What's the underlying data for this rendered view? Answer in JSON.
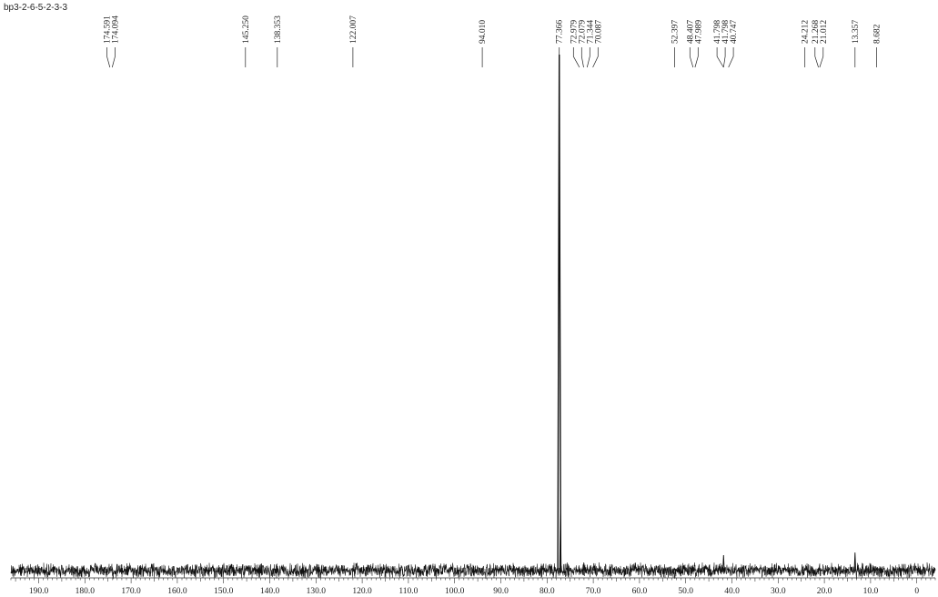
{
  "sample_label": "bp3-2-6-5-2-3-3",
  "chart_data": {
    "type": "line",
    "title": "bp3-2-6-5-2-3-3",
    "xlabel": "",
    "ylabel": "",
    "x_reversed": true,
    "xlim": [
      196,
      -4
    ],
    "x_ticks": [
      190,
      180,
      170,
      160,
      150,
      140,
      130,
      120,
      110,
      100,
      90,
      80,
      70,
      60,
      50,
      40,
      30,
      20,
      10,
      0
    ],
    "x_tick_labels": [
      "190.0",
      "180.0",
      "170.0",
      "160.0",
      "150.0",
      "140.0",
      "130.0",
      "120.0",
      "110.0",
      "100.0",
      "90.0",
      "80.0",
      "70.0",
      "60.0",
      "50.0",
      "40.0",
      "30.0",
      "20.0",
      "10.0",
      "0"
    ],
    "grid": false,
    "peak_labels": [
      "174.591",
      "174.094",
      "145.250",
      "138.353",
      "122.007",
      "94.010",
      "77.366",
      "72.979",
      "72.079",
      "71.344",
      "70.087",
      "52.397",
      "48.407",
      "47.989",
      "41.798",
      "41.798",
      "40.747",
      "24.212",
      "21.268",
      "21.012",
      "13.357",
      "8.682"
    ],
    "peaks": [
      {
        "x": 174.591,
        "height": 0.004
      },
      {
        "x": 174.094,
        "height": 0.004
      },
      {
        "x": 145.25,
        "height": 0.004
      },
      {
        "x": 138.353,
        "height": 0.004
      },
      {
        "x": 122.007,
        "height": 0.004
      },
      {
        "x": 94.01,
        "height": 0.004
      },
      {
        "x": 77.366,
        "height": 1.0
      },
      {
        "x": 77.1,
        "height": 0.12
      },
      {
        "x": 72.979,
        "height": 0.004
      },
      {
        "x": 72.079,
        "height": 0.004
      },
      {
        "x": 71.344,
        "height": 0.004
      },
      {
        "x": 70.087,
        "height": 0.004
      },
      {
        "x": 52.397,
        "height": 0.004
      },
      {
        "x": 48.407,
        "height": 0.004
      },
      {
        "x": 47.989,
        "height": 0.004
      },
      {
        "x": 41.798,
        "height": 0.03
      },
      {
        "x": 40.747,
        "height": 0.004
      },
      {
        "x": 24.212,
        "height": 0.004
      },
      {
        "x": 21.268,
        "height": 0.004
      },
      {
        "x": 21.012,
        "height": 0.004
      },
      {
        "x": 13.357,
        "height": 0.035
      },
      {
        "x": 8.682,
        "height": 0.004
      }
    ],
    "noise_amplitude": 0.012,
    "colors": {
      "trace": "#111111",
      "axis": "#333333",
      "label": "#222222"
    }
  }
}
